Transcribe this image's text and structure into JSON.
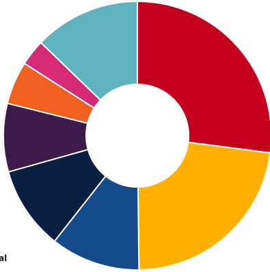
{
  "chart_data": {
    "type": "pie",
    "donut": true,
    "start_angle_deg": 0,
    "direction": "clockwise",
    "slices": [
      {
        "value": 28.3,
        "color": "#c5001f"
      },
      {
        "value": 23.8,
        "color": "#ffb000"
      },
      {
        "value": 11.3,
        "color": "#144b8b"
      },
      {
        "value": 10.5,
        "color": "#0b1f42"
      },
      {
        "value": 8.6,
        "color": "#3c1a4a"
      },
      {
        "value": 5.4,
        "color": "#f0601e"
      },
      {
        "value": 3.3,
        "color": "#d42a78"
      },
      {
        "value": 13.4,
        "color": "#61b2c0"
      }
    ],
    "visible_text": "al"
  }
}
